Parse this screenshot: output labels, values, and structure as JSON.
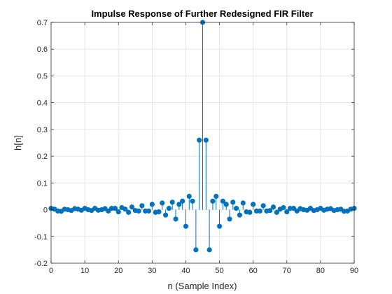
{
  "chart_data": {
    "type": "stem",
    "title": "Impulse Response of Further Redesigned FIR Filter",
    "xlabel": "n (Sample Index)",
    "ylabel": "h[n]",
    "xlim": [
      0,
      90
    ],
    "ylim": [
      -0.2,
      0.7
    ],
    "xticks": [
      0,
      10,
      20,
      30,
      40,
      50,
      60,
      70,
      80,
      90
    ],
    "xtick_labels": [
      "0",
      "10",
      "20",
      "30",
      "40",
      "50",
      "60",
      "70",
      "80",
      "90"
    ],
    "yticks": [
      -0.2,
      -0.1,
      0,
      0.1,
      0.2,
      0.3,
      0.4,
      0.5,
      0.6,
      0.7
    ],
    "ytick_labels": [
      "-0.2",
      "-0.1",
      "0",
      "0.1",
      "0.2",
      "0.3",
      "0.4",
      "0.5",
      "0.6",
      "0.7"
    ],
    "grid": true,
    "series_color": "#0072BD",
    "x": [
      0,
      1,
      2,
      3,
      4,
      5,
      6,
      7,
      8,
      9,
      10,
      11,
      12,
      13,
      14,
      15,
      16,
      17,
      18,
      19,
      20,
      21,
      22,
      23,
      24,
      25,
      26,
      27,
      28,
      29,
      30,
      31,
      32,
      33,
      34,
      35,
      36,
      37,
      38,
      39,
      40,
      41,
      42,
      43,
      44,
      45,
      46,
      47,
      48,
      49,
      50,
      51,
      52,
      53,
      54,
      55,
      56,
      57,
      58,
      59,
      60,
      61,
      62,
      63,
      64,
      65,
      66,
      67,
      68,
      69,
      70,
      71,
      72,
      73,
      74,
      75,
      76,
      77,
      78,
      79,
      80,
      81,
      82,
      83,
      84,
      85,
      86,
      87,
      88,
      89,
      90
    ],
    "values": [
      0.005,
      0.002,
      -0.005,
      -0.006,
      0.002,
      0.0,
      -0.003,
      0.004,
      0.002,
      -0.002,
      0.005,
      0.0,
      -0.003,
      0.005,
      -0.002,
      0.0,
      0.004,
      -0.005,
      0.005,
      0.005,
      -0.008,
      0.008,
      0.002,
      -0.01,
      0.01,
      -0.003,
      -0.005,
      0.015,
      -0.005,
      -0.005,
      0.02,
      -0.01,
      -0.008,
      0.025,
      -0.02,
      0.005,
      0.028,
      -0.035,
      0.02,
      0.032,
      -0.062,
      0.05,
      0.032,
      -0.15,
      0.26,
      0.7,
      0.26,
      -0.15,
      0.032,
      0.05,
      -0.062,
      0.032,
      0.02,
      -0.035,
      0.028,
      0.005,
      -0.02,
      0.025,
      -0.008,
      -0.01,
      0.02,
      -0.005,
      -0.005,
      0.015,
      -0.005,
      -0.003,
      0.01,
      -0.01,
      0.002,
      0.008,
      -0.008,
      0.005,
      0.005,
      -0.005,
      0.004,
      0.0,
      -0.002,
      0.005,
      -0.003,
      0.0,
      0.005,
      -0.002,
      0.002,
      0.004,
      -0.003,
      0.0,
      0.002,
      -0.006,
      -0.005,
      0.002,
      0.005
    ]
  }
}
